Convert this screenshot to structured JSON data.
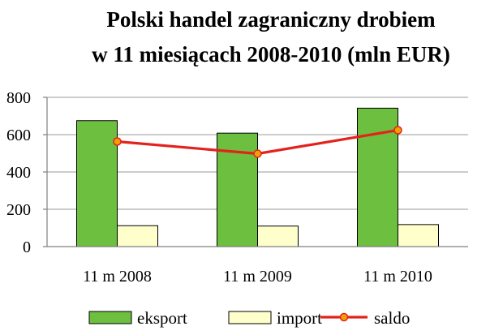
{
  "chart_data": {
    "type": "bar",
    "title_lines": [
      "Polski handel zagraniczny drobiem",
      "w 11 miesiącach 2008-2010 (mln EUR)"
    ],
    "xlabel": "",
    "ylabel": "",
    "categories": [
      "11 m 2008",
      "11 m 2009",
      "11 m 2010"
    ],
    "ylim": [
      0,
      800
    ],
    "yticks": [
      0,
      200,
      400,
      600,
      800
    ],
    "grid": true,
    "legend_position": "bottom",
    "series": [
      {
        "name": "eksport",
        "kind": "bar",
        "color": "#6cbf3f",
        "values": [
          675,
          608,
          742
        ]
      },
      {
        "name": "import",
        "kind": "bar",
        "color": "#ffffcc",
        "values": [
          112,
          110,
          118
        ]
      },
      {
        "name": "saldo",
        "kind": "line",
        "color": "#e3221c",
        "marker_color": "#f0a000",
        "values": [
          563,
          498,
          624
        ]
      }
    ]
  }
}
